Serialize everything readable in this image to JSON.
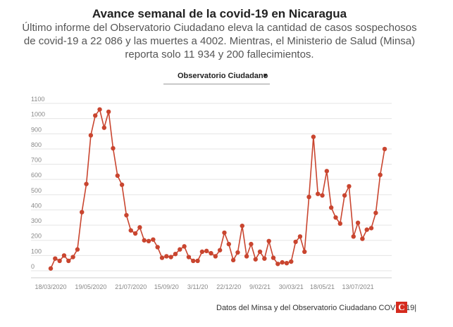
{
  "header": {
    "title": "Avance semanal de la covid-19 en Nicaragua",
    "subtitle_line1": "Último informe del Observatorio Ciudadano eleva la cantidad de casos sospechosos",
    "subtitle_line2": "de covid-19 a 22 086 y las muertes a 4002. Mientras, el Ministerio de Salud (Minsa)",
    "subtitle_line3": "reporta solo 11 934 y 200 fallecimientos."
  },
  "selector": {
    "value": "Observatorio Ciudadano"
  },
  "footer": {
    "source": "Datos del Minsa y del Observatorio Ciudadano COVID-19|",
    "logo_letter": "C"
  },
  "colors": {
    "series": "#c9452f",
    "grid": "#e5e5e5",
    "axis_text": "#888888",
    "logo": "#d52b1e"
  },
  "chart_data": {
    "type": "line",
    "title": "",
    "xlabel": "",
    "ylabel": "",
    "ylim": [
      0,
      1100
    ],
    "yticks": [
      0,
      100,
      200,
      300,
      400,
      500,
      600,
      700,
      800,
      900,
      1000,
      1100
    ],
    "xtick_labels": [
      "18/03/2020",
      "19/05/2020",
      "21/07/2020",
      "15/09/20",
      "3/11/20",
      "22/12/20",
      "9/02/21",
      "30/03/21",
      "18/05/21",
      "13/07/2021"
    ],
    "xtick_indices": [
      0,
      9,
      18,
      26,
      33,
      40,
      47,
      54,
      61,
      69
    ],
    "grid": true,
    "legend": "none",
    "series": [
      {
        "values": [
          15,
          80,
          65,
          100,
          65,
          90,
          140,
          385,
          570,
          890,
          1020,
          1060,
          940,
          1045,
          805,
          625,
          565,
          365,
          265,
          245,
          285,
          200,
          195,
          205,
          155,
          85,
          95,
          90,
          110,
          140,
          160,
          90,
          65,
          65,
          125,
          130,
          115,
          95,
          135,
          250,
          175,
          70,
          120,
          295,
          95,
          175,
          75,
          125,
          80,
          195,
          85,
          45,
          55,
          50,
          60,
          190,
          225,
          125,
          485,
          880,
          505,
          495,
          655,
          415,
          350,
          310,
          495,
          555,
          225,
          315,
          210,
          270,
          280,
          380,
          630,
          800
        ]
      }
    ]
  }
}
